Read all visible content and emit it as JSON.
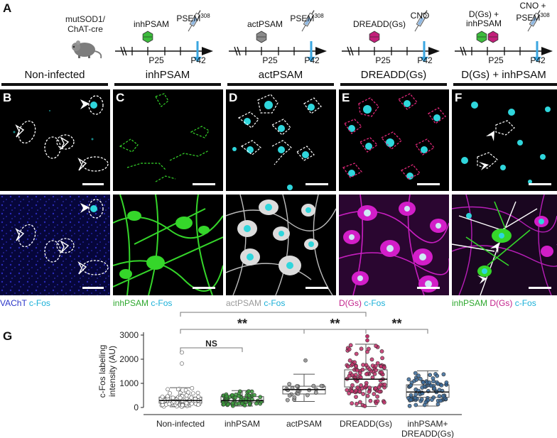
{
  "panel_letters": {
    "a": "A",
    "b": "B",
    "c": "C",
    "d": "D",
    "e": "E",
    "f": "F",
    "g": "G"
  },
  "mouse_label": "mutSOD1/\nChAT-cre",
  "timelines": [
    {
      "top_label": "inhPSAM",
      "drug": "PSEM308",
      "drug_text": "PSEM",
      "drug_sup": "308",
      "p25": "P25",
      "p42": "P42",
      "hex_colors": [
        "#3dbb3d"
      ]
    },
    {
      "top_label": "actPSAM",
      "drug": "PSEM308",
      "drug_text": "PSEM",
      "drug_sup": "308",
      "p25": "P25",
      "p42": "P42",
      "hex_colors": [
        "#8a8a8a"
      ]
    },
    {
      "top_label": "DREADD(Gs)",
      "drug": "CNO",
      "drug_text": "CNO",
      "drug_sup": "",
      "p25": "P25",
      "p42": "P42",
      "hex_colors": [
        "#c21f7a"
      ]
    },
    {
      "top_label": "D(Gs) +\ninhPSAM",
      "drug": "CNO +\nPSEM308",
      "drug_text": "CNO +\nPSEM",
      "drug_sup": "308",
      "p25": "P25",
      "p42": "P42",
      "hex_colors": [
        "#3dbb3d",
        "#c21f7a"
      ]
    }
  ],
  "conditions": [
    "Non-infected",
    "inhPSAM",
    "actPSAM",
    "DREADD(Gs)",
    "D(Gs) + inhPSAM"
  ],
  "captions": [
    {
      "parts": [
        {
          "text": "VAChT",
          "color": "#2a35c8"
        },
        {
          "text": " c-Fos",
          "color": "#1ab0d8"
        }
      ]
    },
    {
      "parts": [
        {
          "text": "inhPSAM",
          "color": "#2ea82e"
        },
        {
          "text": " c-Fos",
          "color": "#1ab0d8"
        }
      ]
    },
    {
      "parts": [
        {
          "text": "actPSAM",
          "color": "#9a9a9a"
        },
        {
          "text": " c-Fos",
          "color": "#1ab0d8"
        }
      ]
    },
    {
      "parts": [
        {
          "text": "D(Gs)",
          "color": "#c21f8a"
        },
        {
          "text": " c-Fos",
          "color": "#1ab0d8"
        }
      ]
    },
    {
      "parts": [
        {
          "text": "inhPSAM",
          "color": "#2ea82e"
        },
        {
          "text": " D(Gs)",
          "color": "#c21f8a"
        },
        {
          "text": " c-Fos",
          "color": "#1ab0d8"
        }
      ]
    }
  ],
  "colors": {
    "cfos": "#2fd6dc",
    "vacht": "#1a1a9a",
    "inhpsam": "#35d62a",
    "actpsam": "#d8d8d8",
    "dreadd": "#d21ec8",
    "arrow": "#ffffff"
  },
  "significance": {
    "stars": "**",
    "ns": "NS"
  },
  "chart_data": {
    "type": "scatter",
    "ylabel": "c-Fos labeling\nintensity (AU)",
    "ylim": [
      0,
      3000
    ],
    "yticks": [
      0,
      1000,
      2000,
      3000
    ],
    "categories": [
      "Non-infected",
      "inhPSAM",
      "actPSAM",
      "DREADD(Gs)",
      "inhPSAM+\nDREADD(Gs)"
    ],
    "colors": [
      "#ffffff",
      "#3a9a3a",
      "#9a9a9a",
      "#c2306a",
      "#3a6a9a"
    ],
    "box": [
      {
        "whisker_low": 30,
        "q1": 180,
        "median": 290,
        "q3": 430,
        "whisker_high": 820
      },
      {
        "whisker_low": 60,
        "q1": 200,
        "median": 280,
        "q3": 450,
        "whisker_high": 700
      },
      {
        "whisker_low": 250,
        "q1": 560,
        "median": 740,
        "q3": 880,
        "whisker_high": 1380
      },
      {
        "whisker_low": 40,
        "q1": 850,
        "median": 1170,
        "q3": 1560,
        "whisker_high": 2620
      },
      {
        "whisker_low": 60,
        "q1": 420,
        "median": 640,
        "q3": 940,
        "whisker_high": 1520
      }
    ],
    "comparisons": [
      {
        "from": 0,
        "to": 1,
        "label": "NS"
      },
      {
        "from": 0,
        "to": 2,
        "label": "**"
      },
      {
        "from": 0,
        "to": 3,
        "label": "**"
      },
      {
        "from": 2,
        "to": 3,
        "label": "**"
      },
      {
        "from": 3,
        "to": 4,
        "label": "**"
      }
    ]
  }
}
